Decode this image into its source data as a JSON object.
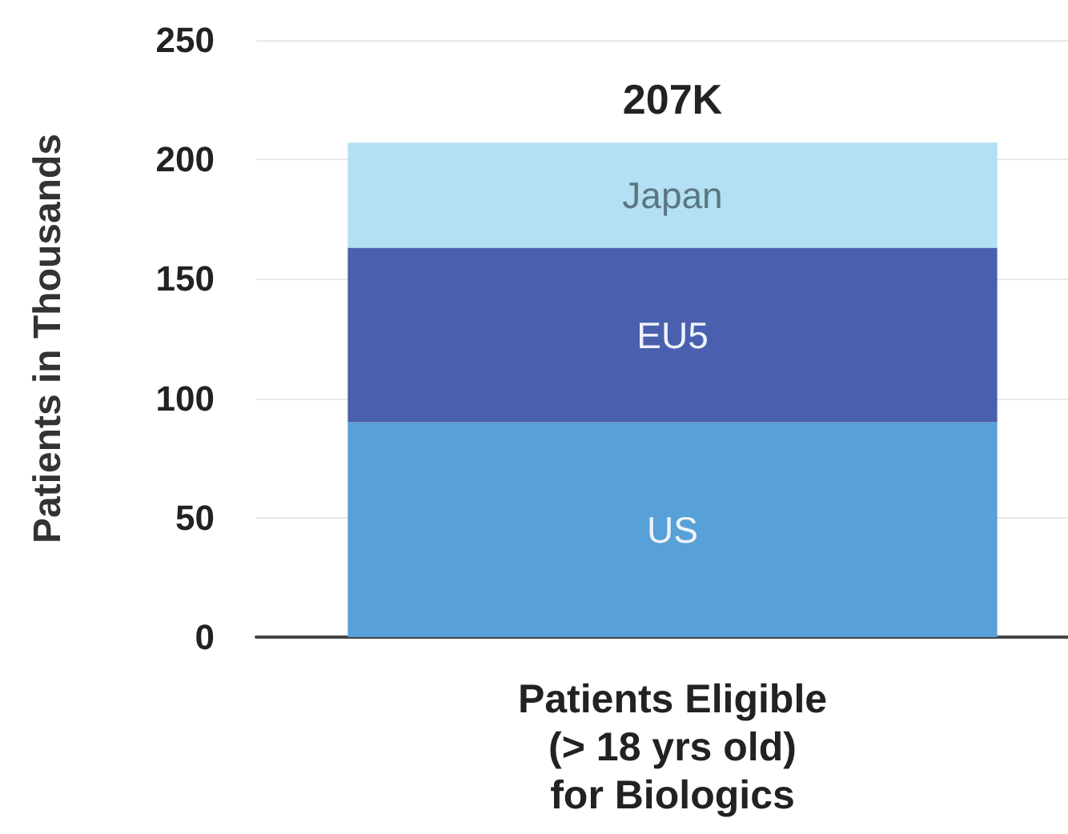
{
  "chart_data": {
    "type": "bar",
    "stacked": true,
    "ylabel": "Patients in Thousands",
    "categories": [
      "Patients Eligible\n(> 18 yrs old)\nfor Biologics"
    ],
    "series": [
      {
        "name": "US",
        "color": "#57a0d8",
        "values": [
          90
        ]
      },
      {
        "name": "EU5",
        "color": "#4a5fad",
        "values": [
          73
        ]
      },
      {
        "name": "Japan",
        "color": "#b3e0f2",
        "values": [
          44
        ]
      }
    ],
    "totals": [
      "207K"
    ],
    "ylim": [
      0,
      250
    ],
    "yticks": [
      0,
      50,
      100,
      150,
      200,
      250
    ],
    "grid": "y"
  }
}
